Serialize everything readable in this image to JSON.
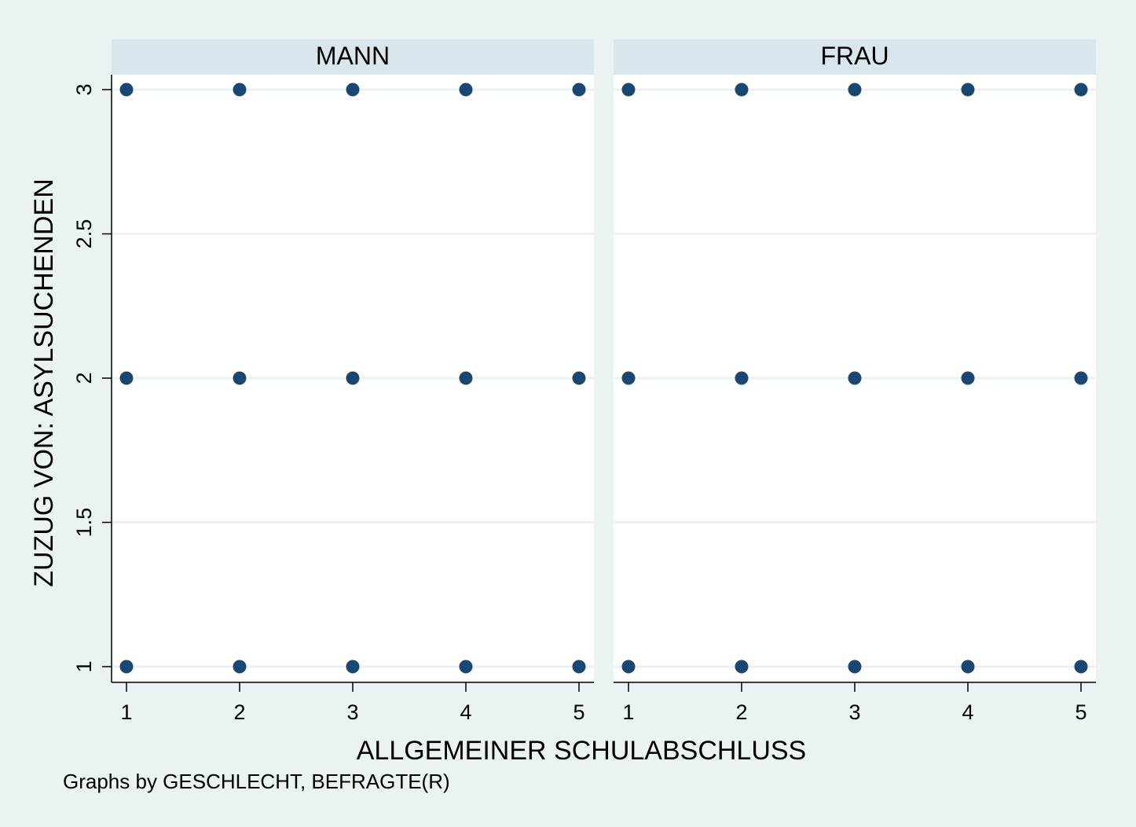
{
  "chart_data": {
    "type": "scatter",
    "ylabel": "ZUZUG VON: ASYLSUCHENDEN",
    "xlabel": "ALLGEMEINER SCHULABSCHLUSS",
    "note": "Graphs by GESCHLECHT, BEFRAGTE(R)",
    "x_ticks": [
      "1",
      "2",
      "3",
      "4",
      "5"
    ],
    "y_ticks": [
      "1",
      "1.5",
      "2",
      "2.5",
      "3"
    ],
    "xlim": [
      1,
      5
    ],
    "ylim": [
      1,
      3
    ],
    "grid": true,
    "panels": [
      {
        "title": "MANN",
        "points": [
          {
            "x": 1,
            "y": 3
          },
          {
            "x": 2,
            "y": 3
          },
          {
            "x": 3,
            "y": 3
          },
          {
            "x": 4,
            "y": 3
          },
          {
            "x": 5,
            "y": 3
          },
          {
            "x": 1,
            "y": 2
          },
          {
            "x": 2,
            "y": 2
          },
          {
            "x": 3,
            "y": 2
          },
          {
            "x": 4,
            "y": 2
          },
          {
            "x": 5,
            "y": 2
          },
          {
            "x": 1,
            "y": 1
          },
          {
            "x": 2,
            "y": 1
          },
          {
            "x": 3,
            "y": 1
          },
          {
            "x": 4,
            "y": 1
          },
          {
            "x": 5,
            "y": 1
          }
        ]
      },
      {
        "title": "FRAU",
        "points": [
          {
            "x": 1,
            "y": 3
          },
          {
            "x": 2,
            "y": 3
          },
          {
            "x": 3,
            "y": 3
          },
          {
            "x": 4,
            "y": 3
          },
          {
            "x": 5,
            "y": 3
          },
          {
            "x": 1,
            "y": 2
          },
          {
            "x": 2,
            "y": 2
          },
          {
            "x": 3,
            "y": 2
          },
          {
            "x": 4,
            "y": 2
          },
          {
            "x": 5,
            "y": 2
          },
          {
            "x": 1,
            "y": 1
          },
          {
            "x": 2,
            "y": 1
          },
          {
            "x": 3,
            "y": 1
          },
          {
            "x": 4,
            "y": 1
          },
          {
            "x": 5,
            "y": 1
          }
        ]
      }
    ],
    "colors": {
      "background": "#eaf2f3",
      "plot_background": "#ffffff",
      "panel_header": "#d9e6eb",
      "grid": "#eaf2f3",
      "marker": "#1a476f",
      "axis": "#000000"
    }
  }
}
